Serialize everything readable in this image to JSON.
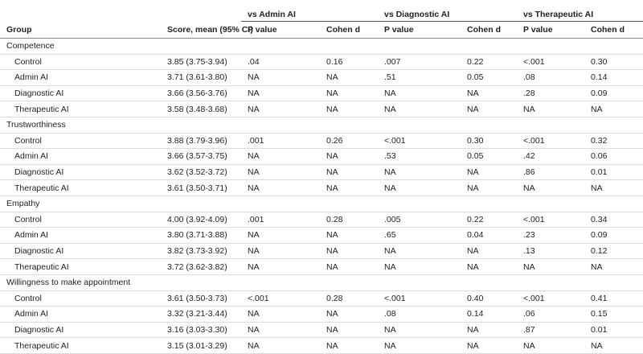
{
  "table": {
    "group_headers": [
      "vs Admin AI",
      "vs Diagnostic AI",
      "vs Therapeutic AI"
    ],
    "column_headers": [
      "Group",
      "Score, mean (95% CI)",
      "P value",
      "Cohen d",
      "P value",
      "Cohen d",
      "P value",
      "Cohen d"
    ],
    "sections": [
      {
        "name": "Competence",
        "rows": [
          [
            "Control",
            "3.85 (3.75-3.94)",
            ".04",
            "0.16",
            ".007",
            "0.22",
            "<.001",
            "0.30"
          ],
          [
            "Admin AI",
            "3.71 (3.61-3.80)",
            "NA",
            "NA",
            ".51",
            "0.05",
            ".08",
            "0.14"
          ],
          [
            "Diagnostic AI",
            "3.66 (3.56-3.76)",
            "NA",
            "NA",
            "NA",
            "NA",
            ".28",
            "0.09"
          ],
          [
            "Therapeutic AI",
            "3.58 (3.48-3.68)",
            "NA",
            "NA",
            "NA",
            "NA",
            "NA",
            "NA"
          ]
        ]
      },
      {
        "name": "Trustworthiness",
        "rows": [
          [
            "Control",
            "3.88 (3.79-3.96)",
            ".001",
            "0.26",
            "<.001",
            "0.30",
            "<.001",
            "0.32"
          ],
          [
            "Admin AI",
            "3.66 (3.57-3.75)",
            "NA",
            "NA",
            ".53",
            "0.05",
            ".42",
            "0.06"
          ],
          [
            "Diagnostic AI",
            "3.62 (3.52-3.72)",
            "NA",
            "NA",
            "NA",
            "NA",
            ".86",
            "0.01"
          ],
          [
            "Therapeutic AI",
            "3.61 (3.50-3.71)",
            "NA",
            "NA",
            "NA",
            "NA",
            "NA",
            "NA"
          ]
        ]
      },
      {
        "name": "Empathy",
        "rows": [
          [
            "Control",
            "4.00 (3.92-4.09)",
            ".001",
            "0.28",
            ".005",
            "0.22",
            "<.001",
            "0.34"
          ],
          [
            "Admin AI",
            "3.80 (3.71-3.88)",
            "NA",
            "NA",
            ".65",
            "0.04",
            ".23",
            "0.09"
          ],
          [
            "Diagnostic AI",
            "3.82 (3.73-3.92)",
            "NA",
            "NA",
            "NA",
            "NA",
            ".13",
            "0.12"
          ],
          [
            "Therapeutic AI",
            "3.72 (3.62-3.82)",
            "NA",
            "NA",
            "NA",
            "NA",
            "NA",
            "NA"
          ]
        ]
      },
      {
        "name": "Willingness to make appointment",
        "rows": [
          [
            "Control",
            "3.61 (3.50-3.73)",
            "<.001",
            "0.28",
            "<.001",
            "0.40",
            "<.001",
            "0.41"
          ],
          [
            "Admin AI",
            "3.32 (3.21-3.44)",
            "NA",
            "NA",
            ".08",
            "0.14",
            ".06",
            "0.15"
          ],
          [
            "Diagnostic AI",
            "3.16 (3.03-3.30)",
            "NA",
            "NA",
            "NA",
            "NA",
            ".87",
            "0.01"
          ],
          [
            "Therapeutic AI",
            "3.15 (3.01-3.29)",
            "NA",
            "NA",
            "NA",
            "NA",
            "NA",
            "NA"
          ]
        ]
      }
    ]
  }
}
